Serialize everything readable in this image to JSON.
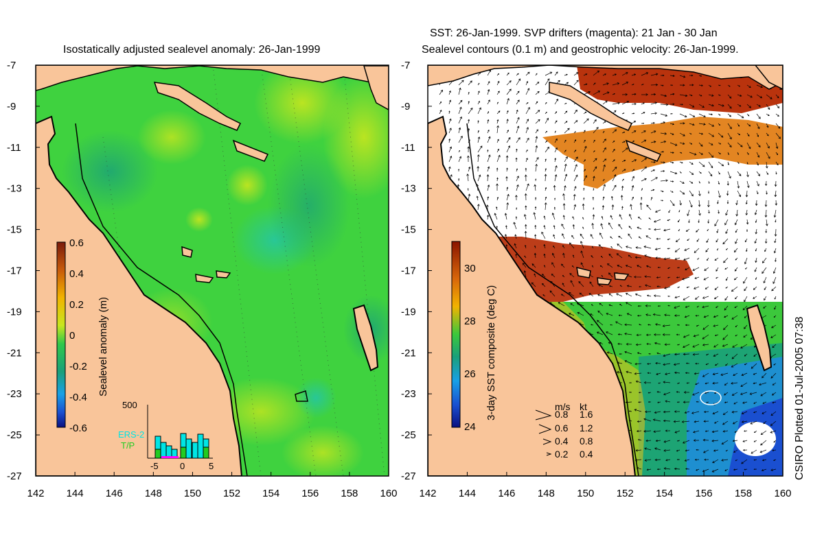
{
  "left_panel": {
    "title": "Isostatically adjusted sealevel anomaly: 26-Jan-1999",
    "colorbar": {
      "label": "Sealevel anomaly (m)",
      "ticks": [
        "0.6",
        "0.4",
        "0.2",
        "0",
        "-0.2",
        "-0.4",
        "-0.6"
      ]
    },
    "histogram": {
      "y_max_label": "500",
      "x_ticks": [
        "-5",
        "0",
        "5"
      ],
      "legend": [
        "ERS-2",
        "T/P"
      ],
      "legend_colors": [
        "#00e5e5",
        "#22cc22"
      ]
    }
  },
  "right_panel": {
    "title_line1": "SST: 26-Jan-1999. SVP drifters (magenta): 21 Jan - 30 Jan",
    "title_line2": "Sealevel contours (0.1 m) and geostrophic velocity: 26-Jan-1999.",
    "colorbar": {
      "label": "3-day SST composite (deg C)",
      "ticks": [
        "30",
        "28",
        "26",
        "24"
      ]
    },
    "velocity_legend": {
      "header_ms": "m/s",
      "header_kt": "kt",
      "rows": [
        {
          "ms": "0.8",
          "kt": "1.6"
        },
        {
          "ms": "0.6",
          "kt": "1.2"
        },
        {
          "ms": "0.4",
          "kt": "0.8"
        },
        {
          "ms": "0.2",
          "kt": "0.4"
        }
      ]
    }
  },
  "axes": {
    "lat_ticks": [
      "-7",
      "-9",
      "-11",
      "-13",
      "-15",
      "-17",
      "-19",
      "-21",
      "-23",
      "-25",
      "-27"
    ],
    "lon_ticks": [
      "142",
      "144",
      "146",
      "148",
      "150",
      "152",
      "154",
      "156",
      "158",
      "160"
    ]
  },
  "footer_stamp": "CSIRO Plotted 01-Jul-2005 07:38",
  "colors": {
    "land": "#f9c59a",
    "anomaly_base": "#3fd23f",
    "sst_warm": "#b52800",
    "sst_cool": "#1e8fd0"
  }
}
